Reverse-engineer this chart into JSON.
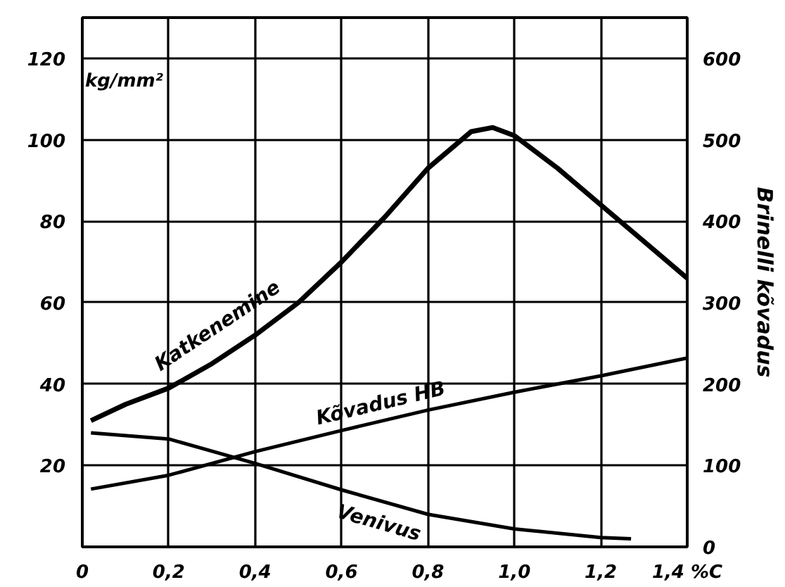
{
  "chart_data": {
    "type": "line",
    "ylabel": "kg/mm²",
    "y2label": "Brinelli kõvadus",
    "xlim": [
      0,
      1.4
    ],
    "xticks": [
      {
        "value": 0,
        "label": "0"
      },
      {
        "value": 0.2,
        "label": "0,2"
      },
      {
        "value": 0.4,
        "label": "0,4"
      },
      {
        "value": 0.6,
        "label": "0,6"
      },
      {
        "value": 0.8,
        "label": "0,8"
      },
      {
        "value": 1.0,
        "label": "1,0"
      },
      {
        "value": 1.2,
        "label": "1,2"
      },
      {
        "value": 1.4,
        "label": "1,4 %C"
      }
    ],
    "ylim": [
      0,
      130
    ],
    "yticks": [
      20,
      40,
      60,
      80,
      100,
      120
    ],
    "y2lim": [
      0,
      650
    ],
    "y2ticks": [
      0,
      100,
      200,
      300,
      400,
      500,
      600
    ],
    "grid": true,
    "marker": "none",
    "line_style": "solid",
    "series": [
      {
        "name": "Katkenemine",
        "color": "#000000",
        "x": [
          0.02,
          0.1,
          0.2,
          0.3,
          0.4,
          0.5,
          0.6,
          0.7,
          0.8,
          0.9,
          0.95,
          1.0,
          1.1,
          1.2,
          1.3,
          1.4
        ],
        "values": [
          31,
          35,
          39,
          45,
          52,
          60,
          70,
          81,
          93,
          102,
          103,
          101,
          93,
          84,
          75,
          66
        ]
      },
      {
        "name": "Kõvadus HB",
        "color": "#000000",
        "axis": "y2",
        "x": [
          0.02,
          0.2,
          0.4,
          0.6,
          0.8,
          1.0,
          1.2,
          1.4
        ],
        "values": [
          71,
          88,
          117,
          143,
          168,
          190,
          210,
          232
        ]
      },
      {
        "name": "Venivus",
        "color": "#000000",
        "x": [
          0.02,
          0.2,
          0.4,
          0.6,
          0.8,
          1.0,
          1.2,
          1.27
        ],
        "values": [
          28,
          26.5,
          20.5,
          14,
          8,
          4.4,
          2.3,
          2
        ]
      }
    ]
  }
}
